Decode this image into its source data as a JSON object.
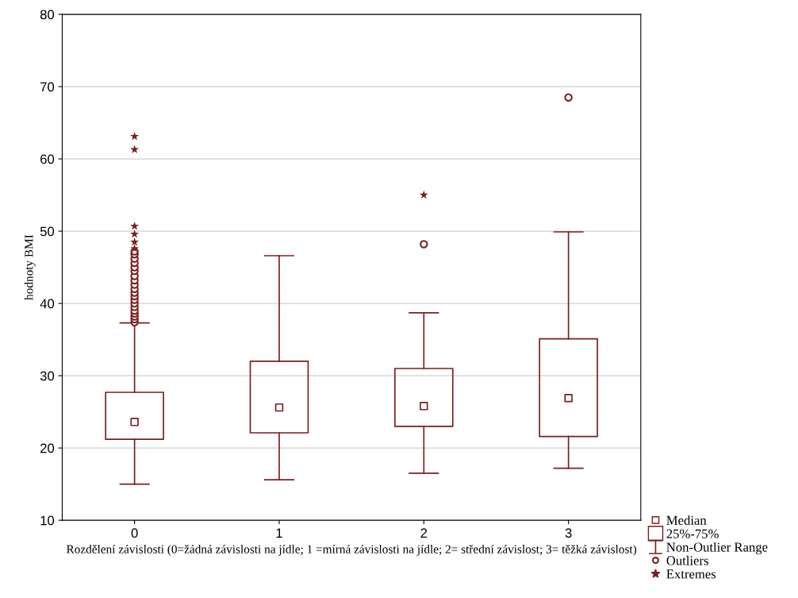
{
  "chart_data": {
    "type": "box",
    "xlabel": "Rozdělení závislosti (0=žádná závislosti na jídle; 1 =mírná závislosti na jídle; 2= střední závislost; 3= těžká závislost)",
    "ylabel": "hodnoty BMI",
    "categories": [
      "0",
      "1",
      "2",
      "3"
    ],
    "ylim": [
      10,
      80
    ],
    "yticks": [
      10,
      20,
      30,
      40,
      50,
      60,
      70,
      80
    ],
    "grid": "y",
    "legend": "bottom right",
    "annotations": [
      "Median",
      "25%-75%",
      "Non-Outlier Range",
      "Outliers"
    ],
    "series": [
      {
        "color": "#7a1f1f",
        "boxes": [
          {
            "low": 15.0,
            "q1": 21.2,
            "median": 23.6,
            "q3": 27.7,
            "high": 37.3,
            "outliers": [
              37.4,
              37.8,
              38.2,
              38.6,
              39.0,
              39.5,
              40.0,
              40.5,
              41.0,
              41.5,
              42.0,
              42.6,
              43.2,
              43.8,
              44.5,
              45.0,
              45.6,
              46.2,
              46.8,
              47.2
            ]
          },
          {
            "low": 15.6,
            "q1": 22.1,
            "median": 25.6,
            "q3": 32.0,
            "high": 46.6
          },
          {
            "low": 16.5,
            "q1": 23.0,
            "median": 25.8,
            "q3": 31.0,
            "high": 38.7,
            "outliers": [
              48.2
            ]
          },
          {
            "low": 17.2,
            "q1": 21.6,
            "median": 26.9,
            "q3": 35.1,
            "high": 49.9,
            "outliers": [
              68.5
            ]
          }
        ]
      },
      {
        "type": "scatter",
        "name": "Extremes",
        "color": "#7a1f1f",
        "marker": "star",
        "x": [
          "0",
          "0",
          "0",
          "0",
          "0",
          "0",
          "2"
        ],
        "values": [
          63.1,
          61.3,
          50.7,
          49.6,
          48.5,
          47.6,
          55.0
        ]
      }
    ]
  }
}
